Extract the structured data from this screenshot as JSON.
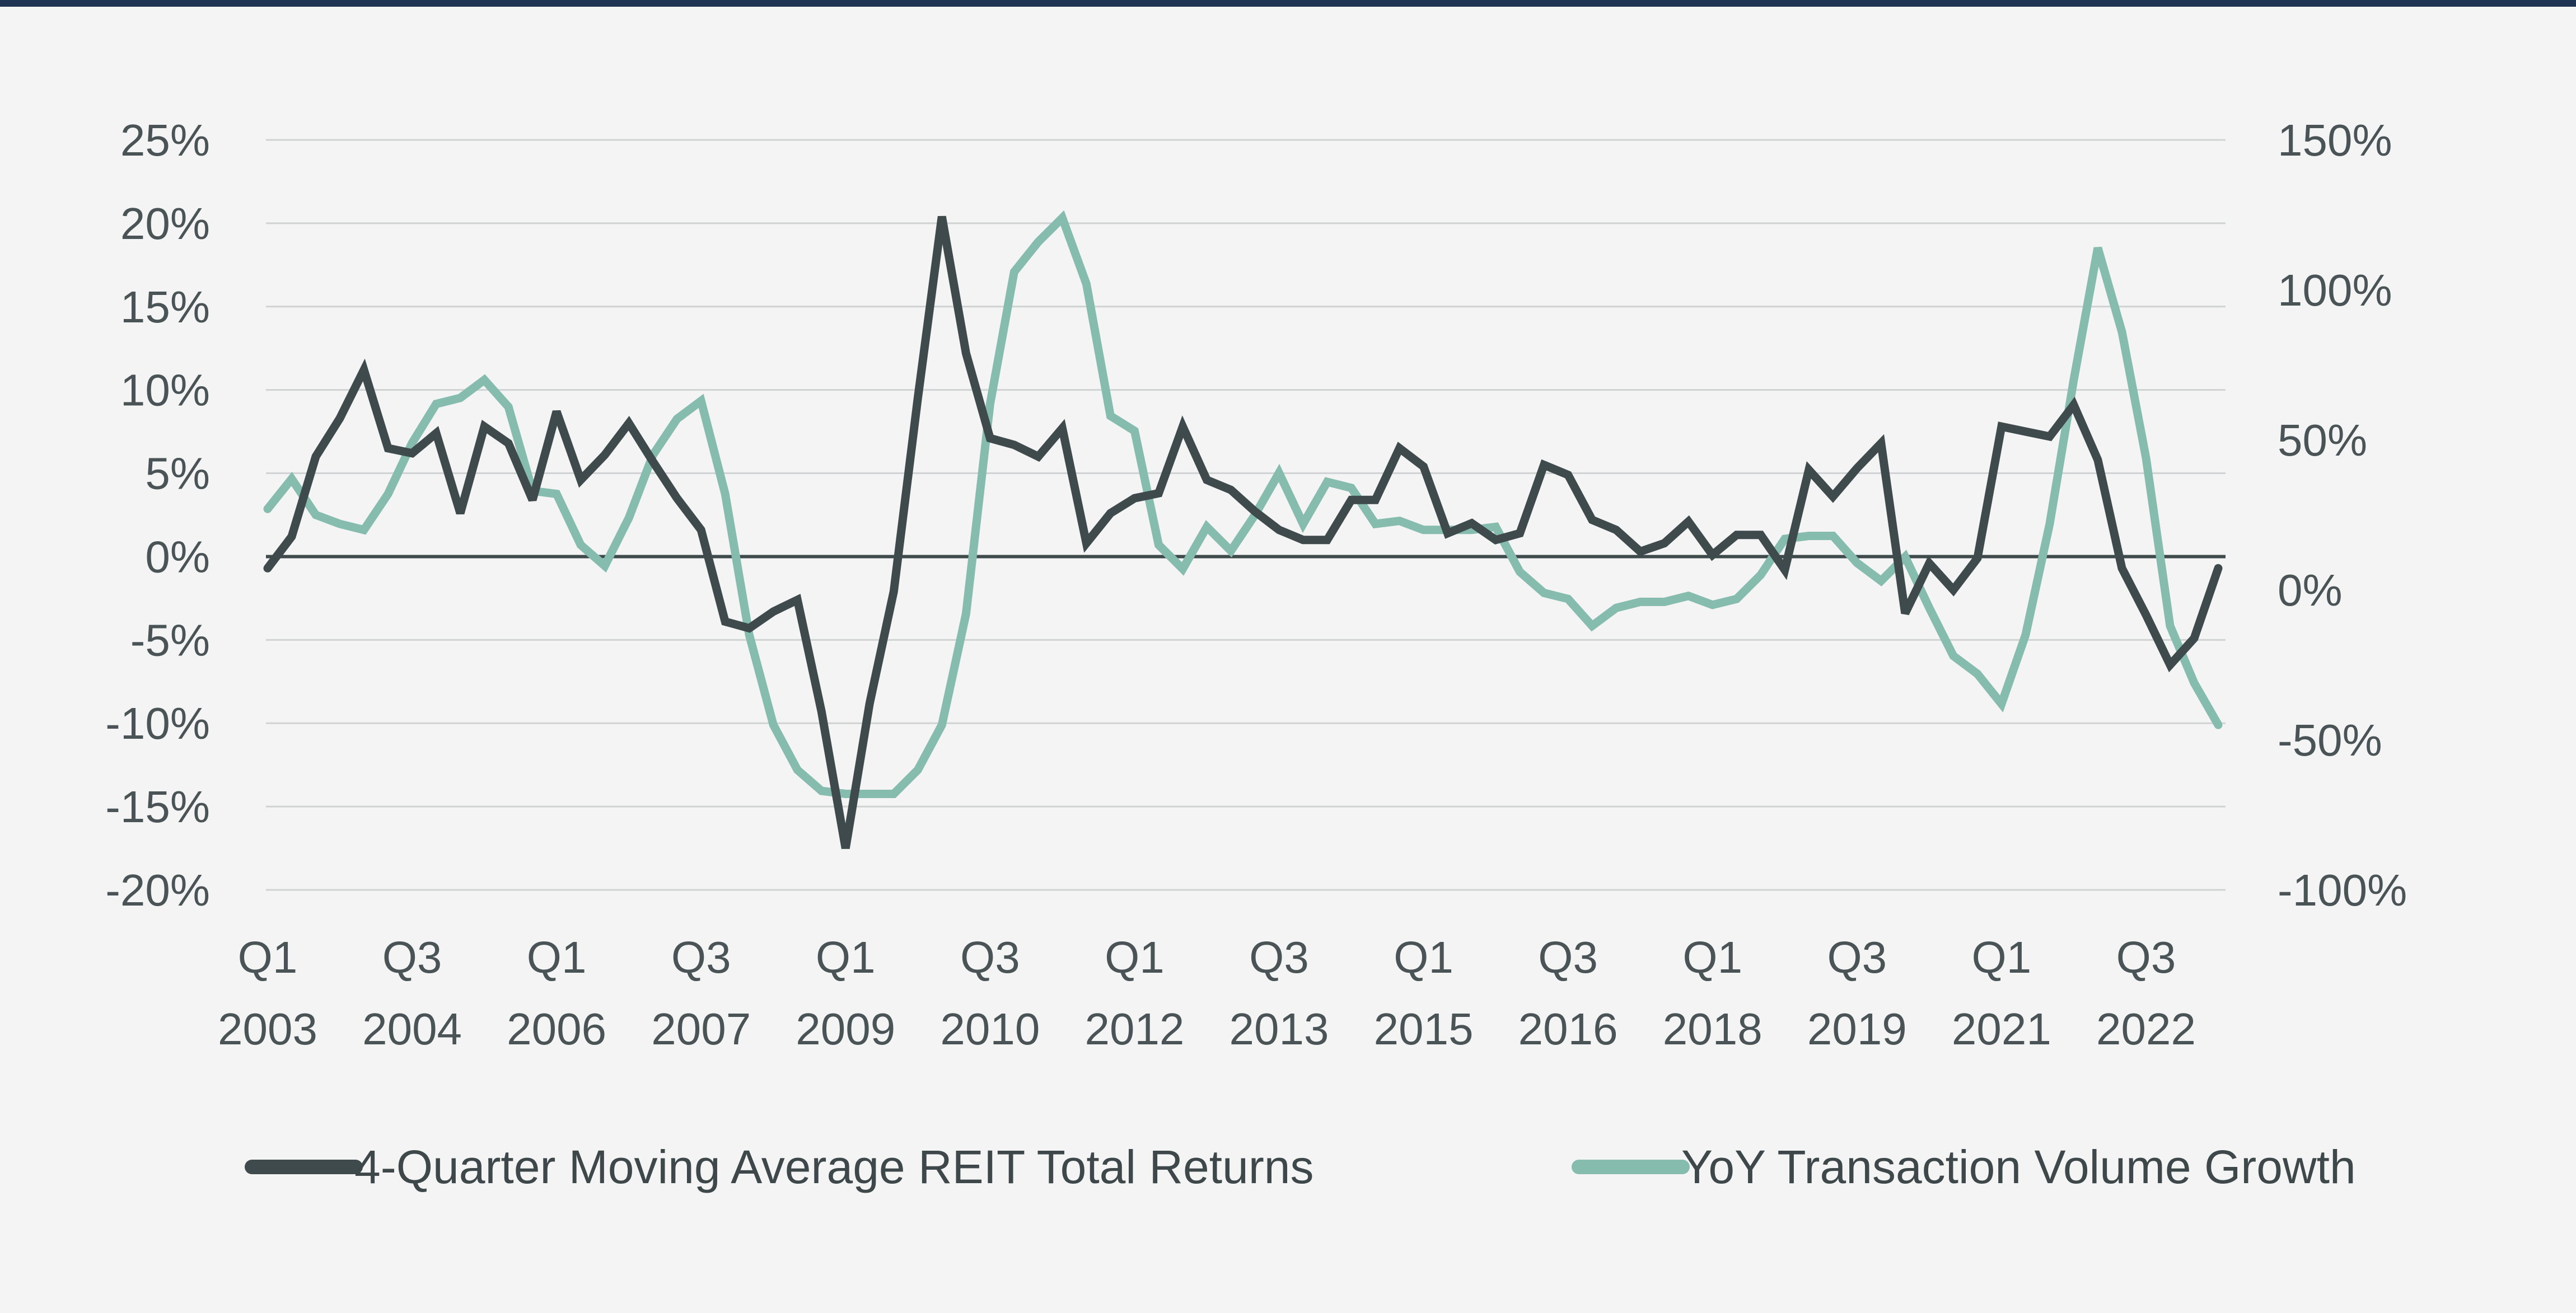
{
  "chart_data": {
    "type": "line",
    "title": "",
    "left_axis": {
      "ticks": [
        "25%",
        "20%",
        "15%",
        "10%",
        "5%",
        "0%",
        "-5%",
        "-10%",
        "-15%",
        "-20%"
      ],
      "range": [
        -20,
        25
      ]
    },
    "right_axis": {
      "ticks": [
        "150%",
        "100%",
        "50%",
        "0%",
        "-50%",
        "-100%"
      ],
      "range": [
        -100,
        150
      ]
    },
    "x_tick_labels": [
      {
        "q": "Q1",
        "y": "2003"
      },
      {
        "q": "Q3",
        "y": "2004"
      },
      {
        "q": "Q1",
        "y": "2006"
      },
      {
        "q": "Q3",
        "y": "2007"
      },
      {
        "q": "Q1",
        "y": "2009"
      },
      {
        "q": "Q3",
        "y": "2010"
      },
      {
        "q": "Q1",
        "y": "2012"
      },
      {
        "q": "Q3",
        "y": "2013"
      },
      {
        "q": "Q1",
        "y": "2015"
      },
      {
        "q": "Q3",
        "y": "2016"
      },
      {
        "q": "Q1",
        "y": "2018"
      },
      {
        "q": "Q3",
        "y": "2019"
      },
      {
        "q": "Q1",
        "y": "2021"
      },
      {
        "q": "Q3",
        "y": "2022"
      }
    ],
    "series": [
      {
        "name": "4-Quarter Moving Average REIT Total Returns",
        "axis": "left",
        "color": "#3f4a4d",
        "values": [
          -0.7,
          1.2,
          6,
          8.3,
          11.2,
          6.5,
          6.2,
          7.4,
          2.6,
          7.8,
          6.8,
          3.4,
          8.7,
          4.6,
          6.1,
          8,
          5.7,
          3.5,
          1.6,
          -3.9,
          -4.3,
          -3.3,
          -2.6,
          -9.3,
          -17.5,
          -8.8,
          -2.1,
          9.5,
          20.4,
          12.2,
          7.1,
          6.7,
          6,
          7.7,
          0.8,
          2.6,
          3.5,
          3.8,
          7.8,
          4.6,
          4,
          2.7,
          1.6,
          1,
          1,
          3.4,
          3.4,
          6.5,
          5.4,
          1.4,
          2,
          1,
          1.4,
          5.5,
          4.9,
          2.2,
          1.6,
          0.3,
          0.8,
          2.1,
          0.1,
          1.3,
          1.3,
          -0.8,
          5.2,
          3.6,
          5.3,
          6.8,
          -3.4,
          -0.4,
          -2,
          -0.1,
          7.8,
          7.5,
          7.2,
          9.1,
          5.8,
          -0.7,
          -3.5,
          -6.5,
          -4.9,
          -0.7
        ]
      },
      {
        "name": "YoY Transaction Volume Growth",
        "axis": "right",
        "color": "#86bcad",
        "values": [
          27,
          37,
          25,
          22,
          20,
          32,
          49,
          62,
          64,
          70,
          61,
          33,
          32,
          15,
          8,
          24,
          45,
          57,
          63,
          32,
          -15,
          -45,
          -60,
          -67,
          -68,
          -68,
          -68,
          -60,
          -45,
          -8,
          62,
          106,
          116,
          124,
          102,
          58,
          53,
          15,
          7,
          21,
          13,
          25,
          39,
          22,
          36,
          34,
          22,
          23,
          20,
          20,
          20,
          21,
          6,
          -1,
          -3,
          -12,
          -6,
          -4,
          -4,
          -2,
          -5,
          -3,
          5,
          17,
          18,
          18,
          9,
          3,
          11,
          -6,
          -22,
          -28,
          -38,
          -15,
          22,
          70,
          114,
          86,
          44,
          -12,
          -31,
          -45
        ]
      }
    ]
  }
}
